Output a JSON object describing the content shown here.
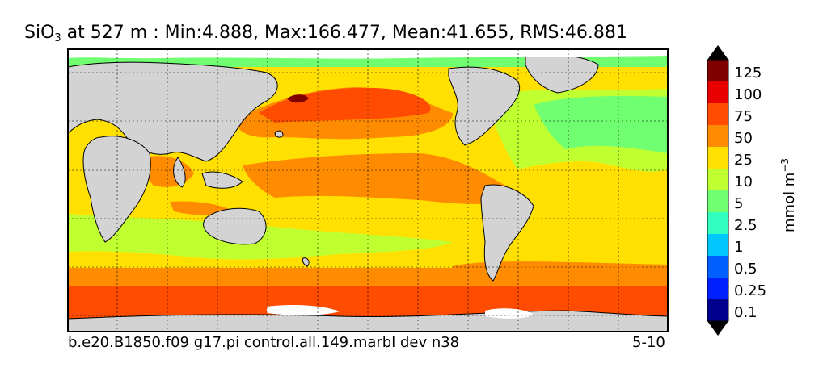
{
  "title": {
    "variable": "SiO",
    "subscript": "3",
    "rest": " at 527 m : Min:4.888, Max:166.477, Mean:41.655, RMS:46.881"
  },
  "footer": {
    "case_name": "b.e20.B1850.f09 g17.pi control.all.149.marbl dev n38",
    "period": "5-10"
  },
  "colorbar": {
    "unit_base": "mmol m",
    "unit_exp": "−3",
    "levels": [
      {
        "label": "0.1",
        "color": "#00008f"
      },
      {
        "label": "0.25",
        "color": "#0020ff"
      },
      {
        "label": "0.5",
        "color": "#0060ff"
      },
      {
        "label": "1",
        "color": "#00c8ff"
      },
      {
        "label": "2.5",
        "color": "#30ffc0"
      },
      {
        "label": "5",
        "color": "#70ff70"
      },
      {
        "label": "10",
        "color": "#c0ff30"
      },
      {
        "label": "25",
        "color": "#ffe000"
      },
      {
        "label": "50",
        "color": "#ff8c00"
      },
      {
        "label": "75",
        "color": "#ff4c00"
      },
      {
        "label": "100",
        "color": "#e80000"
      },
      {
        "label": "125",
        "color": "#800000"
      }
    ],
    "under_color": "#000000",
    "over_color": "#000000"
  },
  "colors": {
    "land": "#d3d3d3",
    "missing": "#ffffff"
  }
}
